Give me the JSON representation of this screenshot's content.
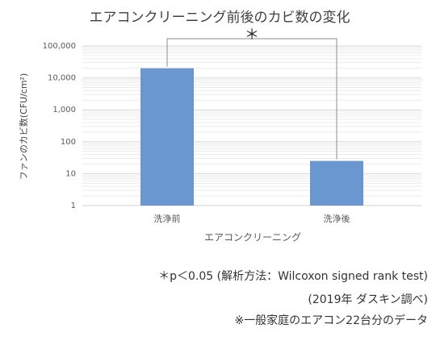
{
  "chart_data": {
    "type": "bar",
    "title": "エアコンクリーニング前後のカビ数の変化",
    "x_label": "エアコンクリーニング",
    "y_label": "ファンのカビ数(CFU/cm²)",
    "categories": [
      "洗浄前",
      "洗浄後"
    ],
    "values": [
      20000,
      25
    ],
    "color": "#6a97d0",
    "log_scale": true,
    "grid": true,
    "minor_grid": true,
    "ylim": [
      1,
      100000
    ],
    "yticks": [
      1,
      10,
      100,
      {
        "value": 1000,
        "label": "1,000"
      },
      {
        "value": 10000,
        "label": "10,000"
      },
      {
        "value": 100000,
        "label": "100,000"
      }
    ],
    "significance": "＊",
    "notes": [
      "＊p＜0.05 (解析方法：Wilcoxon signed rank test)",
      "(2019年 ダスキン調べ)",
      "※一般家庭のエアコン22台分のデータ"
    ]
  }
}
